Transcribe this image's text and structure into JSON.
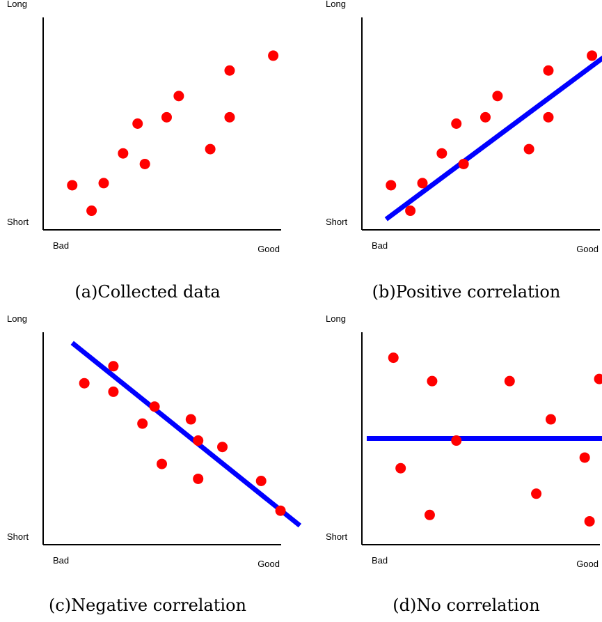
{
  "chart_data": [
    {
      "type": "scatter",
      "title": "",
      "caption": "(a)Collected data",
      "xlabel_left": "Bad",
      "xlabel_right": "Good",
      "ylabel_top": "Long",
      "ylabel_bottom": "Short",
      "xlim": [
        0,
        10
      ],
      "ylim": [
        0,
        10
      ],
      "grid": false,
      "point_color": "#ff0000",
      "points": [
        {
          "x": 1.2,
          "y": 2.1
        },
        {
          "x": 2.0,
          "y": 0.9
        },
        {
          "x": 2.5,
          "y": 2.2
        },
        {
          "x": 3.3,
          "y": 3.6
        },
        {
          "x": 3.9,
          "y": 5.0
        },
        {
          "x": 4.2,
          "y": 3.1
        },
        {
          "x": 5.1,
          "y": 5.3
        },
        {
          "x": 5.6,
          "y": 6.3
        },
        {
          "x": 6.9,
          "y": 3.8
        },
        {
          "x": 7.7,
          "y": 5.3
        },
        {
          "x": 7.7,
          "y": 7.5
        },
        {
          "x": 9.5,
          "y": 8.2
        }
      ]
    },
    {
      "type": "scatter",
      "title": "",
      "caption": "(b)Positive correlation",
      "xlabel_left": "Bad",
      "xlabel_right": "Good",
      "ylabel_top": "Long",
      "ylabel_bottom": "Short",
      "xlim": [
        0,
        10
      ],
      "ylim": [
        0,
        10
      ],
      "grid": false,
      "point_color": "#ff0000",
      "line_color": "#0000ff",
      "trend_line": [
        {
          "x": 1.0,
          "y": 0.5
        },
        {
          "x": 10.9,
          "y": 8.9
        }
      ],
      "points": [
        {
          "x": 1.2,
          "y": 2.1
        },
        {
          "x": 2.0,
          "y": 0.9
        },
        {
          "x": 2.5,
          "y": 2.2
        },
        {
          "x": 3.3,
          "y": 3.6
        },
        {
          "x": 3.9,
          "y": 5.0
        },
        {
          "x": 4.2,
          "y": 3.1
        },
        {
          "x": 5.1,
          "y": 5.3
        },
        {
          "x": 5.6,
          "y": 6.3
        },
        {
          "x": 6.9,
          "y": 3.8
        },
        {
          "x": 7.7,
          "y": 5.3
        },
        {
          "x": 7.7,
          "y": 7.5
        },
        {
          "x": 9.5,
          "y": 8.2
        }
      ]
    },
    {
      "type": "scatter",
      "title": "",
      "caption": "(c)Negative correlation",
      "xlabel_left": "Bad",
      "xlabel_right": "Good",
      "ylabel_top": "Long",
      "ylabel_bottom": "Short",
      "xlim": [
        0,
        10
      ],
      "ylim": [
        0,
        10
      ],
      "grid": false,
      "point_color": "#ff0000",
      "line_color": "#0000ff",
      "trend_line": [
        {
          "x": 1.2,
          "y": 9.5
        },
        {
          "x": 10.6,
          "y": 0.9
        }
      ],
      "points": [
        {
          "x": 1.7,
          "y": 7.6
        },
        {
          "x": 2.9,
          "y": 8.4
        },
        {
          "x": 2.9,
          "y": 7.2
        },
        {
          "x": 4.1,
          "y": 5.7
        },
        {
          "x": 4.6,
          "y": 6.5
        },
        {
          "x": 4.9,
          "y": 3.8
        },
        {
          "x": 6.1,
          "y": 5.9
        },
        {
          "x": 6.4,
          "y": 4.9
        },
        {
          "x": 6.4,
          "y": 3.1
        },
        {
          "x": 7.4,
          "y": 4.6
        },
        {
          "x": 9.0,
          "y": 3.0
        },
        {
          "x": 9.8,
          "y": 1.6
        }
      ]
    },
    {
      "type": "scatter",
      "title": "",
      "caption": "(d)No correlation",
      "xlabel_left": "Bad",
      "xlabel_right": "Good",
      "ylabel_top": "Long",
      "ylabel_bottom": "Short",
      "xlim": [
        0,
        10
      ],
      "ylim": [
        0,
        10
      ],
      "grid": false,
      "point_color": "#ff0000",
      "line_color": "#0000ff",
      "trend_line": [
        {
          "x": 0.2,
          "y": 5.0
        },
        {
          "x": 11.0,
          "y": 5.0
        }
      ],
      "points": [
        {
          "x": 1.3,
          "y": 8.8
        },
        {
          "x": 1.6,
          "y": 3.6
        },
        {
          "x": 2.8,
          "y": 1.4
        },
        {
          "x": 2.9,
          "y": 7.7
        },
        {
          "x": 3.9,
          "y": 4.9
        },
        {
          "x": 6.1,
          "y": 7.7
        },
        {
          "x": 7.2,
          "y": 2.4
        },
        {
          "x": 7.8,
          "y": 5.9
        },
        {
          "x": 9.2,
          "y": 4.1
        },
        {
          "x": 9.4,
          "y": 1.1
        },
        {
          "x": 9.8,
          "y": 7.8
        }
      ]
    }
  ]
}
